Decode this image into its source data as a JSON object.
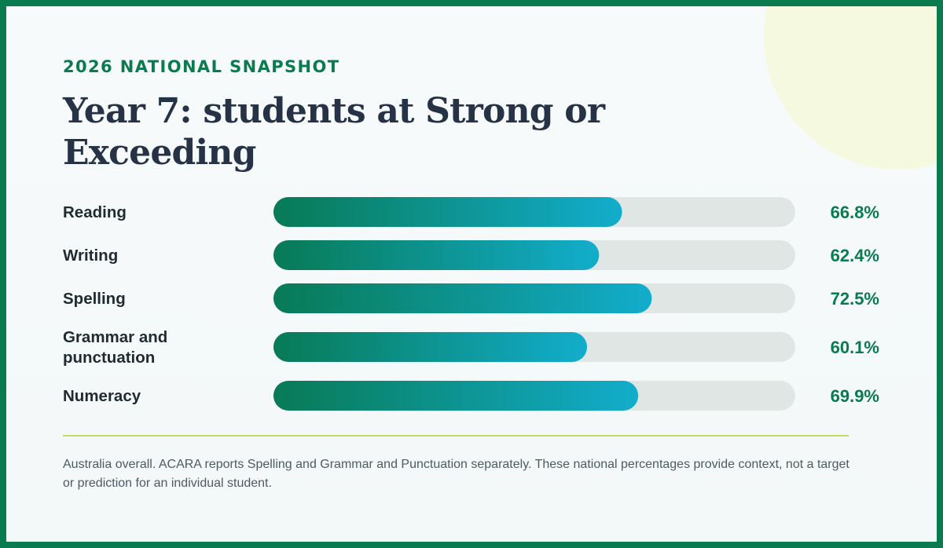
{
  "header": {
    "eyebrow": "2026 NATIONAL SNAPSHOT",
    "title": "Year 7: students at Strong or Exceeding"
  },
  "footer": {
    "note": "Australia overall. ACARA reports Spelling and Grammar and Punctuation separately. These national percentages provide context, not a target or prediction for an individual student."
  },
  "colors": {
    "brand_green": "#0a7a4f",
    "bar_gradient_start": "#087a55",
    "bar_gradient_end": "#12adcc",
    "track": "#e0e6e3",
    "divider": "#c4da62"
  },
  "chart_data": {
    "type": "bar",
    "orientation": "horizontal",
    "title": "Year 7: students at Strong or Exceeding",
    "categories": [
      "Reading",
      "Writing",
      "Spelling",
      "Grammar and punctuation",
      "Numeracy"
    ],
    "category_lines": [
      [
        "Reading"
      ],
      [
        "Writing"
      ],
      [
        "Spelling"
      ],
      [
        "Grammar and",
        "punctuation"
      ],
      [
        "Numeracy"
      ]
    ],
    "values": [
      66.8,
      62.4,
      72.5,
      60.1,
      69.9
    ],
    "value_labels": [
      "66.8%",
      "62.4%",
      "72.5%",
      "60.1%",
      "69.9%"
    ],
    "xlim": [
      0,
      100
    ],
    "grid": false,
    "legend": "none"
  }
}
